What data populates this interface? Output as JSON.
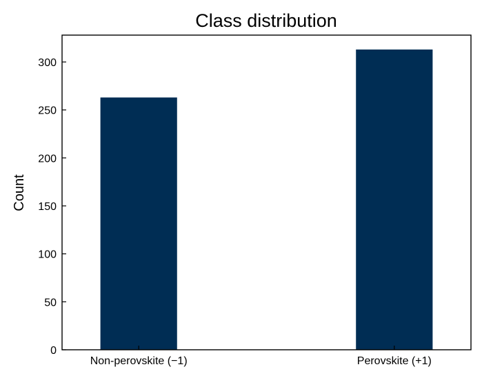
{
  "chart_data": {
    "type": "bar",
    "title": "Class distribution",
    "xlabel": "",
    "ylabel": "Count",
    "categories": [
      "Non-perovskite (−1)",
      "Perovskite (+1)"
    ],
    "values": [
      263,
      313
    ],
    "ylim": [
      0,
      328
    ],
    "yticks": [
      0,
      50,
      100,
      150,
      200,
      250,
      300
    ],
    "grid": false,
    "legend": "none",
    "bar_color": "#002d54"
  }
}
